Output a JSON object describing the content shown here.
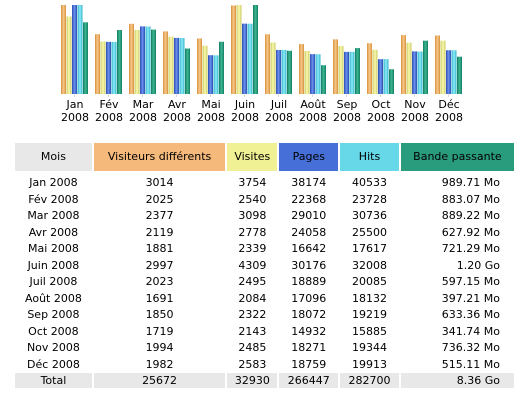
{
  "colors": {
    "visitors": "#f4b97b",
    "visits": "#f0f094",
    "pages": "#4670d8",
    "hits": "#66d8e8",
    "bandwidth": "#2a9c7e",
    "header_neutral": "#e8e8e8"
  },
  "chart_data": {
    "type": "bar",
    "categories": [
      [
        "Jan",
        "2008"
      ],
      [
        "Fév",
        "2008"
      ],
      [
        "Mar",
        "2008"
      ],
      [
        "Avr",
        "2008"
      ],
      [
        "Mai",
        "2008"
      ],
      [
        "Juin",
        "2008"
      ],
      [
        "Juil",
        "2008"
      ],
      [
        "Août",
        "2008"
      ],
      [
        "Sep",
        "2008"
      ],
      [
        "Oct",
        "2008"
      ],
      [
        "Nov",
        "2008"
      ],
      [
        "Déc",
        "2008"
      ]
    ],
    "series": [
      {
        "key": "visitors",
        "values": [
          3014,
          2025,
          2377,
          2119,
          1881,
          2997,
          2023,
          1691,
          1850,
          1719,
          1994,
          1982
        ]
      },
      {
        "key": "visits",
        "values": [
          3754,
          2540,
          3098,
          2778,
          2339,
          4309,
          2495,
          2084,
          2322,
          2143,
          2485,
          2583
        ]
      },
      {
        "key": "pages",
        "values": [
          38174,
          22368,
          29010,
          24058,
          16642,
          30176,
          18889,
          17096,
          18072,
          14932,
          18271,
          18759
        ]
      },
      {
        "key": "hits",
        "values": [
          40533,
          23728,
          30736,
          25500,
          17617,
          32008,
          20085,
          18132,
          19219,
          15885,
          19344,
          19913
        ]
      },
      {
        "key": "bandwidth",
        "values": [
          989.71,
          883.07,
          889.22,
          627.92,
          721.29,
          1228.8,
          597.15,
          397.21,
          633.36,
          341.74,
          736.32,
          515.11
        ]
      }
    ],
    "grid": false,
    "legend": "none"
  },
  "table": {
    "headers": {
      "month": "Mois",
      "visitors": "Visiteurs différents",
      "visits": "Visites",
      "pages": "Pages",
      "hits": "Hits",
      "bandwidth": "Bande passante"
    },
    "rows": [
      [
        "Jan 2008",
        "3014",
        "3754",
        "38174",
        "40533",
        "989.71 Mo"
      ],
      [
        "Fév 2008",
        "2025",
        "2540",
        "22368",
        "23728",
        "883.07 Mo"
      ],
      [
        "Mar 2008",
        "2377",
        "3098",
        "29010",
        "30736",
        "889.22 Mo"
      ],
      [
        "Avr 2008",
        "2119",
        "2778",
        "24058",
        "25500",
        "627.92 Mo"
      ],
      [
        "Mai 2008",
        "1881",
        "2339",
        "16642",
        "17617",
        "721.29 Mo"
      ],
      [
        "Juin 2008",
        "2997",
        "4309",
        "30176",
        "32008",
        "1.20 Go"
      ],
      [
        "Juil 2008",
        "2023",
        "2495",
        "18889",
        "20085",
        "597.15 Mo"
      ],
      [
        "Août 2008",
        "1691",
        "2084",
        "17096",
        "18132",
        "397.21 Mo"
      ],
      [
        "Sep 2008",
        "1850",
        "2322",
        "18072",
        "19219",
        "633.36 Mo"
      ],
      [
        "Oct 2008",
        "1719",
        "2143",
        "14932",
        "15885",
        "341.74 Mo"
      ],
      [
        "Nov 2008",
        "1994",
        "2485",
        "18271",
        "19344",
        "736.32 Mo"
      ],
      [
        "Déc 2008",
        "1982",
        "2583",
        "18759",
        "19913",
        "515.11 Mo"
      ]
    ],
    "total": [
      "Total",
      "25672",
      "32930",
      "266447",
      "282700",
      "8.36 Go"
    ]
  }
}
